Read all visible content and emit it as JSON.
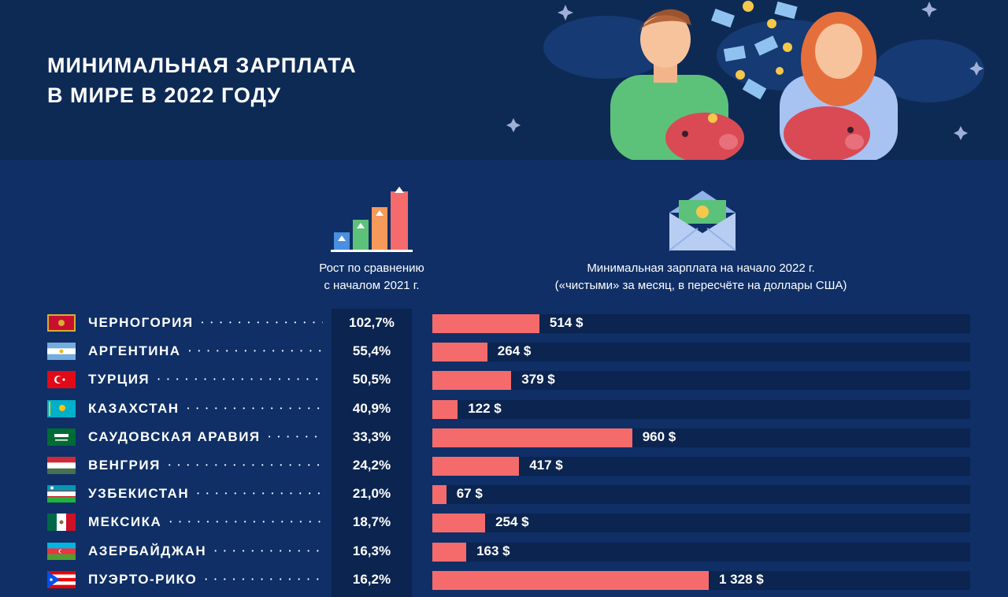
{
  "title": {
    "line1": "МИНИМАЛЬНАЯ ЗАРПЛАТА",
    "line2": "В МИРЕ В 2022 ГОДУ"
  },
  "columns": {
    "growth": {
      "line1": "Рост по сравнению",
      "line2": "с началом 2021 г."
    },
    "wage": {
      "line1": "Минимальная зарплата на начало 2022 г.",
      "line2": "(«чистыми» за месяц, в пересчёте на доллары США)"
    }
  },
  "colors": {
    "background": "#0f2f66",
    "header": "#0d2a55",
    "bar": "#f56b6b",
    "track": "#0b2450"
  },
  "icons": {
    "growth": "bar-chart-growth-icon",
    "wage": "envelope-money-icon",
    "illustration": "people-piggy-bank-money-illustration"
  },
  "chart_data": {
    "type": "bar",
    "orientation": "horizontal",
    "xlim": [
      0,
      1328
    ],
    "grid": false,
    "categories": [
      "ЧЕРНОГОРИЯ",
      "АРГЕНТИНА",
      "ТУРЦИЯ",
      "КАЗАХСТАН",
      "САУДОВСКАЯ АРАВИЯ",
      "ВЕНГРИЯ",
      "УЗБЕКИСТАН",
      "МЕКСИКА",
      "АЗЕРБАЙДЖАН",
      "ПУЭРТО-РИКО"
    ],
    "values": [
      514,
      264,
      379,
      122,
      960,
      417,
      67,
      254,
      163,
      1328
    ],
    "value_labels": [
      "514 $",
      "264 $",
      "379 $",
      "122 $",
      "960 $",
      "417 $",
      "67 $",
      "254 $",
      "163 $",
      "1 328 $"
    ],
    "growth_labels": [
      "102,7%",
      "55,4%",
      "50,5%",
      "40,9%",
      "33,3%",
      "24,2%",
      "21,0%",
      "18,7%",
      "16,3%",
      "16,2%"
    ],
    "growth_values": [
      102.7,
      55.4,
      50.5,
      40.9,
      33.3,
      24.2,
      21.0,
      18.7,
      16.3,
      16.2
    ],
    "flags": [
      "montenegro-flag-icon",
      "argentina-flag-icon",
      "turkey-flag-icon",
      "kazakhstan-flag-icon",
      "saudi-arabia-flag-icon",
      "hungary-flag-icon",
      "uzbekistan-flag-icon",
      "mexico-flag-icon",
      "azerbaijan-flag-icon",
      "puerto-rico-flag-icon"
    ]
  }
}
